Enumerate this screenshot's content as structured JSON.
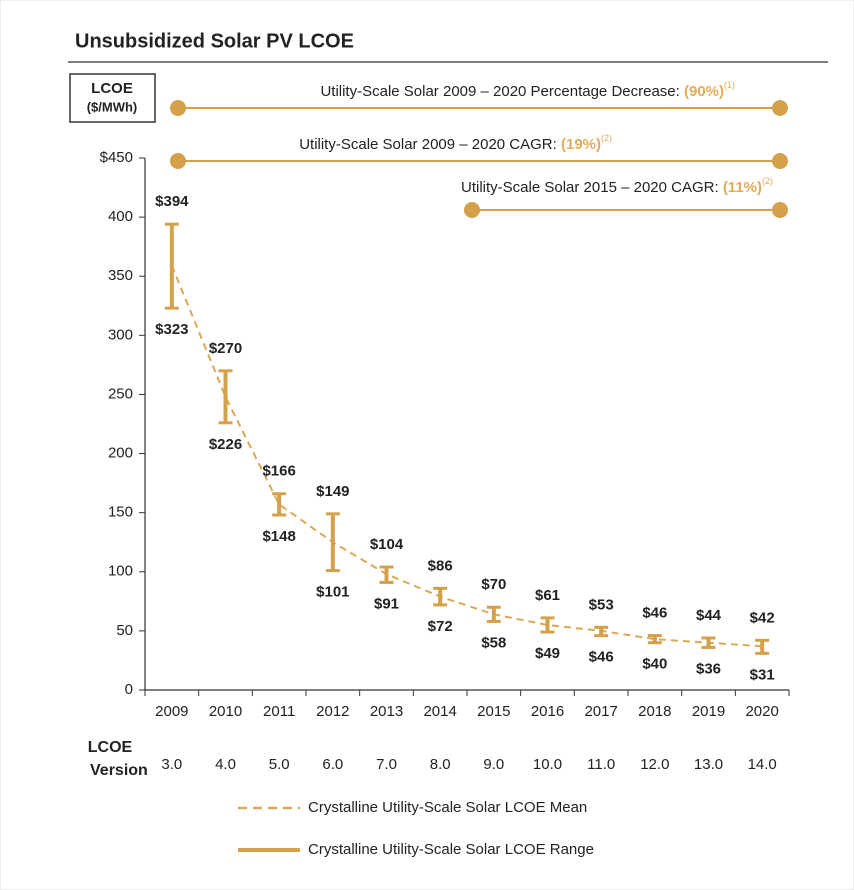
{
  "chart_data": {
    "type": "range",
    "title": "Unsubsidized Solar PV LCOE",
    "y_label": [
      "LCOE",
      "($/MWh)"
    ],
    "categories": [
      "2009",
      "2010",
      "2011",
      "2012",
      "2013",
      "2014",
      "2015",
      "2016",
      "2017",
      "2018",
      "2019",
      "2020"
    ],
    "version_label": [
      "LCOE",
      "Version"
    ],
    "versions": [
      "3.0",
      "4.0",
      "5.0",
      "6.0",
      "7.0",
      "8.0",
      "9.0",
      "10.0",
      "11.0",
      "12.0",
      "13.0",
      "14.0"
    ],
    "ylim": [
      0,
      450
    ],
    "yticks": [
      0,
      50,
      100,
      150,
      200,
      250,
      300,
      350,
      400,
      {
        "value": 450,
        "label": "$450"
      }
    ],
    "series": [
      {
        "name": "Crystalline Utility-Scale Solar LCOE Mean",
        "color": "#d9a955",
        "style": "dashed",
        "values": [
          359,
          248,
          157,
          125,
          98,
          79,
          64,
          55,
          50,
          43,
          40,
          37
        ]
      },
      {
        "name": "Crystalline Utility-Scale Solar LCOE Range",
        "color": "#d4a04a",
        "style": "solid",
        "high": [
          394,
          270,
          166,
          149,
          104,
          86,
          70,
          61,
          53,
          46,
          44,
          42
        ],
        "high_labels": [
          "$394",
          "$270",
          "$166",
          "$149",
          "$104",
          "$86",
          "$70",
          "$61",
          "$53",
          "$46",
          "$44",
          "$42"
        ],
        "low": [
          323,
          226,
          148,
          101,
          91,
          72,
          58,
          49,
          46,
          40,
          36,
          31
        ],
        "low_labels": [
          "$323",
          "$226",
          "$148",
          "$101",
          "$91",
          "$72",
          "$58",
          "$49",
          "$46",
          "$40",
          "$36",
          "$31"
        ]
      }
    ],
    "annotations": [
      {
        "text": "Utility-Scale Solar 2009 – 2020 Percentage Decrease: ",
        "highlight": "(90%)",
        "note": "(1)"
      },
      {
        "text": "Utility-Scale Solar 2009 – 2020 CAGR: ",
        "highlight": "(19%)",
        "note": "(2)"
      },
      {
        "text": "Utility-Scale Solar 2015 – 2020 CAGR: ",
        "highlight": "(11%)",
        "note": "(2)"
      }
    ],
    "highlight_color": "#e3ab57"
  }
}
